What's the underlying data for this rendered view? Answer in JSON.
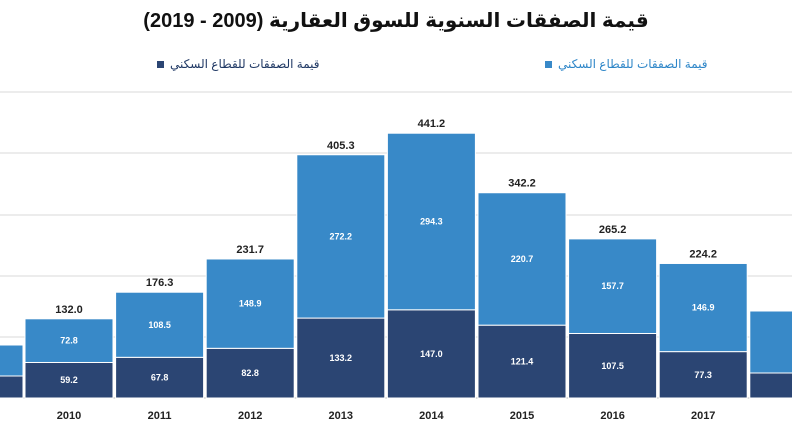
{
  "chart_data": {
    "type": "bar",
    "stacked": true,
    "title": "قيمة الصفقات السنوية للسوق العقارية (2009 - 2019)",
    "xlabel": "",
    "ylabel": "",
    "categories": [
      "2010",
      "2011",
      "2012",
      "2013",
      "2014",
      "2015",
      "2016",
      "2017"
    ],
    "totals": [
      132.0,
      176.3,
      231.7,
      405.3,
      441.2,
      342.2,
      265.2,
      224.2
    ],
    "series": [
      {
        "name": "قيمة الصفقات للقطاع السكني",
        "color": "#2B4573",
        "values": [
          59.2,
          67.8,
          82.8,
          133.2,
          147.0,
          121.4,
          107.5,
          77.3
        ]
      },
      {
        "name": "قيمة الصفقات للقطاع السكني",
        "color": "#3889C8",
        "values": [
          72.8,
          108.5,
          148.9,
          272.2,
          294.3,
          220.7,
          157.7,
          146.9
        ]
      }
    ],
    "ylim": [
      0,
      510
    ],
    "grid": true,
    "legend_position": "top"
  }
}
